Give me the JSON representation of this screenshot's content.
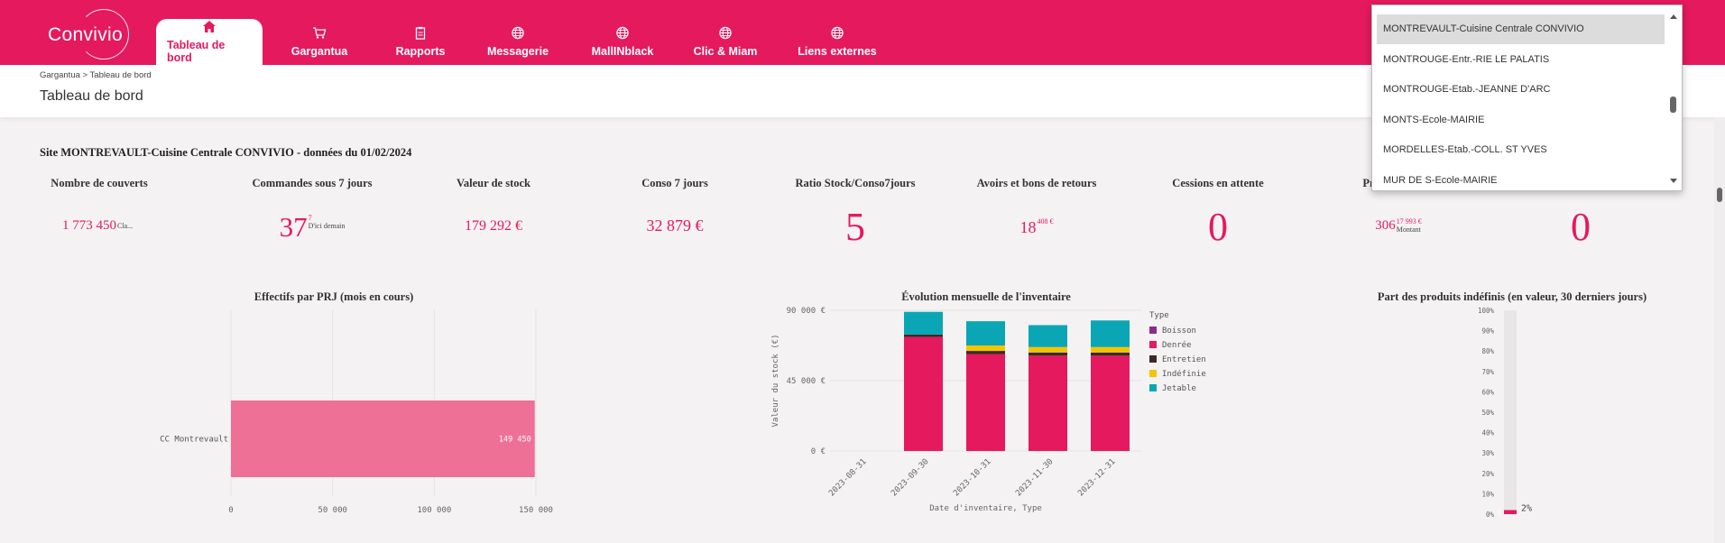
{
  "brand": {
    "logo_text": "Convivio",
    "primary": "#e5195e"
  },
  "nav": {
    "tabs": [
      {
        "label": "Tableau de bord",
        "icon": "home-icon",
        "active": true
      },
      {
        "label": "Gargantua",
        "icon": "cart-icon",
        "active": false
      },
      {
        "label": "Rapports",
        "icon": "clipboard-icon",
        "active": false
      },
      {
        "label": "Messagerie",
        "icon": "globe-icon",
        "active": false
      },
      {
        "label": "MallINblack",
        "icon": "globe-icon",
        "active": false
      },
      {
        "label": "Clic & Miam",
        "icon": "globe-icon",
        "active": false
      },
      {
        "label": "Liens externes",
        "icon": "globe-icon",
        "active": false
      }
    ]
  },
  "header": {
    "breadcrumb": "Gargantua > Tableau de bord",
    "title": "Tableau de bord"
  },
  "site_title": "Site MONTREVAULT-Cuisine Centrale CONVIVIO - données du 01/02/2024",
  "kpis": [
    {
      "label": "Nombre de couverts",
      "value": "1 773 450",
      "sup_top": "",
      "sup_bottom": "Cla..."
    },
    {
      "label": "Commandes sous 7 jours",
      "value": "37",
      "sup_top": "7",
      "sup_bottom": "D'ici demain"
    },
    {
      "label": "Valeur de stock",
      "value": "179 292 €"
    },
    {
      "label": "Conso 7 jours",
      "value": "32 879 €"
    },
    {
      "label": "Ratio Stock/Conso7jours",
      "value": "5"
    },
    {
      "label": "Avoirs et bons de retours",
      "value": "18",
      "sup_top": "408 €"
    },
    {
      "label": "Cessions en attente",
      "value": "0"
    },
    {
      "label": "Pr",
      "value": "306",
      "sup_top": "17 993 €",
      "sup_bottom": "Montant"
    },
    {
      "label": "",
      "value": "0"
    }
  ],
  "charts": {
    "prj": {
      "title": "Effectifs par PRJ (mois en cours)",
      "category": "CC Montrevault",
      "value_label": "149 450",
      "x_ticks": [
        "0",
        "50 000",
        "100 000",
        "150 000"
      ]
    },
    "inventaire": {
      "title": "Évolution mensuelle de l'inventaire",
      "ylabel": "Valeur du stock (€)",
      "xlabel": "Date d'inventaire, Type",
      "legend_title": "Type",
      "y_ticks": [
        "90 000 €",
        "45 000 €",
        "0 €"
      ]
    },
    "indefinis": {
      "title": "Part des produits indéfinis (en valeur, 30 derniers jours)",
      "y_ticks": [
        "100%",
        "90%",
        "80%",
        "70%",
        "60%",
        "50%",
        "40%",
        "30%",
        "20%",
        "10%",
        "0%"
      ],
      "value_label": "2%"
    }
  },
  "chart_data": [
    {
      "type": "bar",
      "orientation": "horizontal",
      "title": "Effectifs par PRJ (mois en cours)",
      "categories": [
        "CC Montrevault"
      ],
      "values": [
        149450
      ],
      "xlim": [
        0,
        150000
      ],
      "color": "#ef7097"
    },
    {
      "type": "bar",
      "stacked": true,
      "title": "Évolution mensuelle de l'inventaire",
      "ylabel": "Valeur du stock (€)",
      "xlabel": "Date d'inventaire, Type",
      "ylim": [
        0,
        90000
      ],
      "legend_placement": "right",
      "categories": [
        "2023-08-31",
        "2023-09-30",
        "2023-10-31",
        "2023-11-30",
        "2023-12-31"
      ],
      "series": [
        {
          "name": "Boisson",
          "color": "#8e2a8e",
          "values": [
            0,
            0,
            0,
            0,
            0
          ]
        },
        {
          "name": "Denrée",
          "color": "#e5195e",
          "values": [
            0,
            73000,
            62000,
            61000,
            61000
          ]
        },
        {
          "name": "Entretien",
          "color": "#3a2a2a",
          "values": [
            0,
            1500,
            2000,
            2000,
            2000
          ]
        },
        {
          "name": "Indéfinie",
          "color": "#f5c400",
          "values": [
            0,
            0,
            3500,
            3500,
            3500
          ]
        },
        {
          "name": "Jetable",
          "color": "#0aa6b5",
          "values": [
            0,
            14500,
            15500,
            14000,
            17000
          ]
        }
      ]
    },
    {
      "type": "bar",
      "title": "Part des produits indéfinis (en valeur, 30 derniers jours)",
      "ylim": [
        0,
        100
      ],
      "values": [
        2
      ],
      "unit": "%"
    }
  ],
  "dropdown": {
    "items": [
      "MONTREVAULT-Cuisine Centrale CONVIVIO",
      "MONTROUGE-Entr.-RIE LE PALATIS",
      "MONTROUGE-Etab.-JEANNE D'ARC",
      "MONTS-Ecole-MAIRIE",
      "MORDELLES-Etab.-COLL. ST YVES",
      "MUR DE S-Ecole-MAIRIE"
    ],
    "selected": 0
  }
}
